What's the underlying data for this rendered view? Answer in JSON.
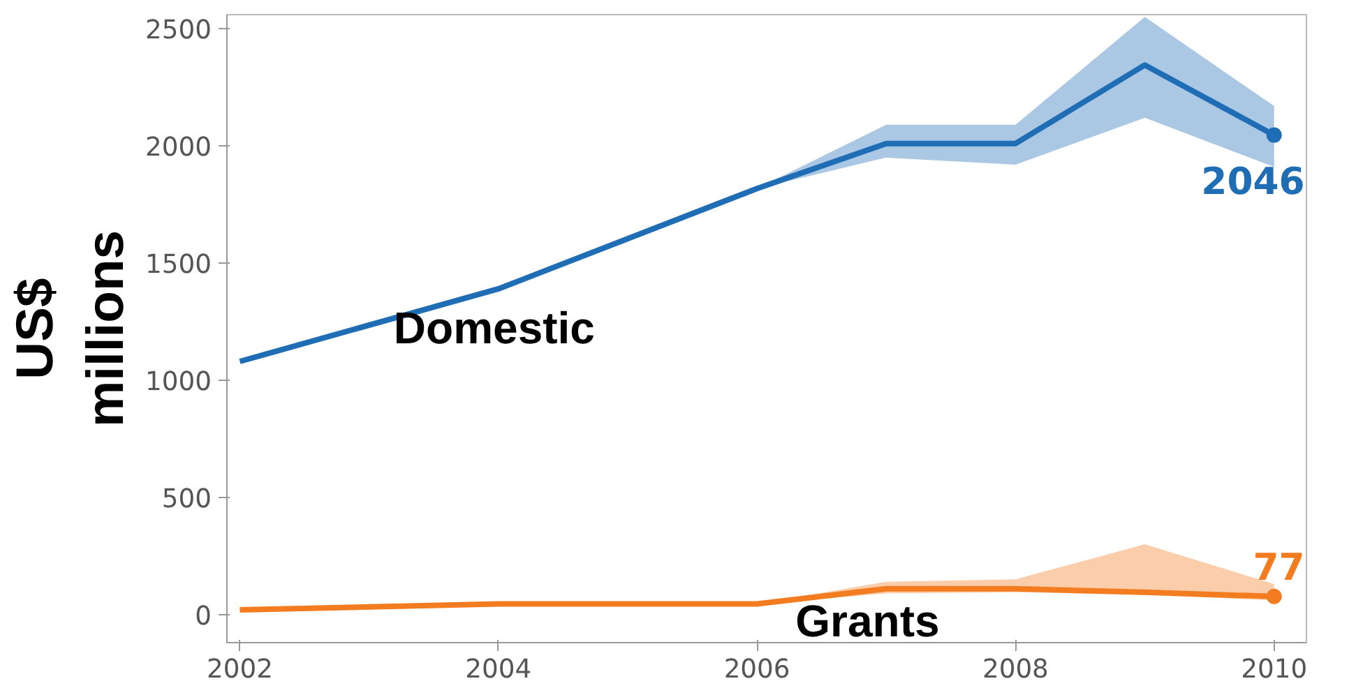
{
  "chart_data": {
    "type": "line",
    "ylabel": "US$\nmillions",
    "x": [
      2002,
      2004,
      2006,
      2007,
      2008,
      2009,
      2010
    ],
    "xlim": [
      2001.9,
      2010.25
    ],
    "ylim": [
      -120,
      2560
    ],
    "xticks": [
      2002,
      2004,
      2006,
      2008,
      2010
    ],
    "yticks": [
      0,
      500,
      1000,
      1500,
      2000,
      2500
    ],
    "series": [
      {
        "name": "Domestic",
        "color": "#1f6db5",
        "values": [
          1080,
          1390,
          1818,
          2010,
          2010,
          2345,
          2046
        ],
        "lower": [
          1080,
          1390,
          1818,
          1950,
          1920,
          2120,
          1910
        ],
        "upper": [
          1080,
          1390,
          1818,
          2090,
          2090,
          2550,
          2170
        ],
        "value_labels": [
          null,
          null,
          null,
          null,
          null,
          null,
          "2046"
        ]
      },
      {
        "name": "Grants",
        "color": "#f47c20",
        "values": [
          20,
          45,
          45,
          110,
          110,
          95,
          77
        ],
        "lower": [
          20,
          45,
          45,
          90,
          95,
          85,
          60
        ],
        "upper": [
          20,
          45,
          45,
          140,
          150,
          300,
          130
        ],
        "value_labels": [
          null,
          null,
          null,
          null,
          null,
          null,
          "77"
        ]
      }
    ],
    "grid": false
  }
}
